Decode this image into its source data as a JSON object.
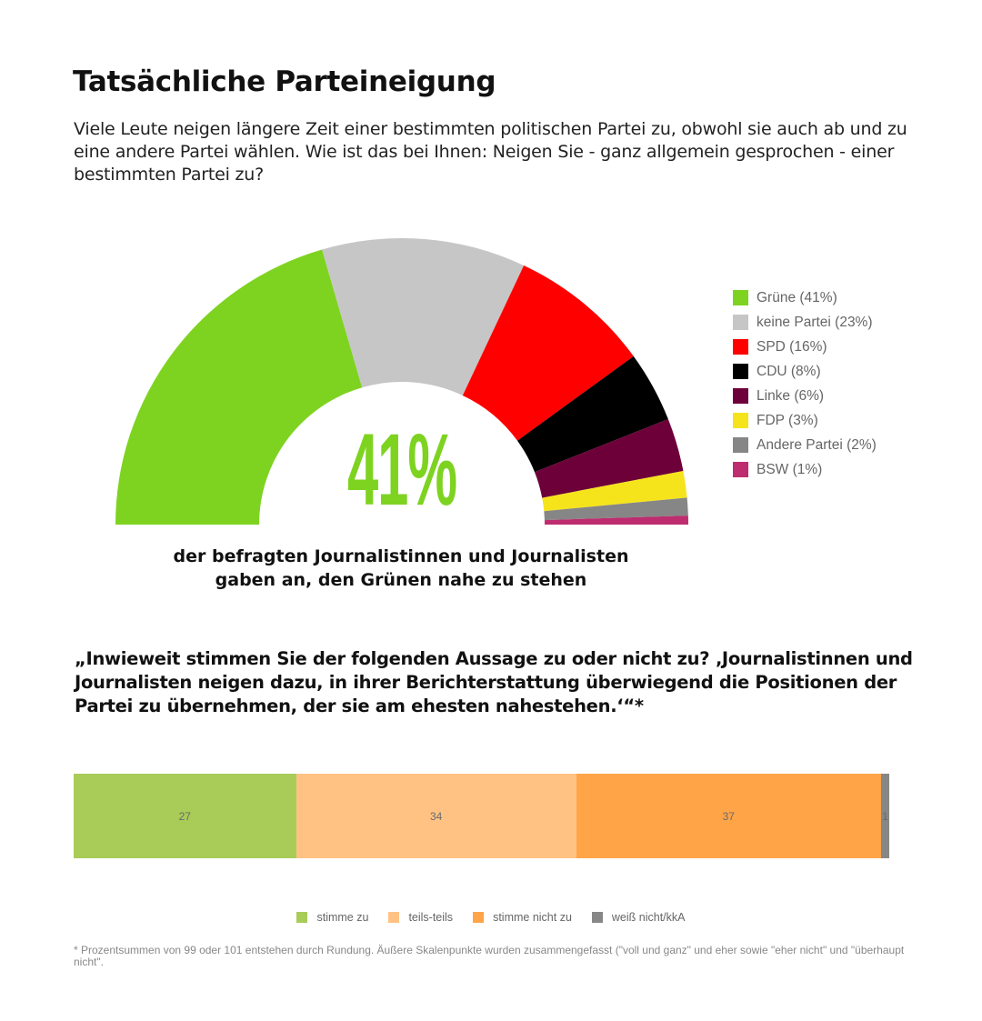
{
  "title": "Tatsächliche Parteineigung",
  "question": "Viele Leute neigen längere Zeit einer bestimmten politischen Partei zu, obwohl sie auch ab und zu eine andere Partei wählen. Wie ist das bei Ihnen: Neigen Sie - ganz allgemein gesprochen - einer bestimmten Partei zu?",
  "highlight": {
    "value": "41%",
    "caption_line1": "der befragten Journalistinnen und Journalisten",
    "caption_line2": "gaben an, den Grünen nahe zu stehen"
  },
  "statement": "„Inwieweit stimmen Sie der folgenden Aussage zu oder nicht zu? ‚Journalistinnen und Journalisten neigen dazu, in ihrer Berichterstattung überwiegend die Positionen der Partei zu übernehmen, der sie am ehesten nahestehen.‘“*",
  "footnote": "* Prozentsummen von 99 oder 101 entstehen durch Rundung. Äußere Skalenpunkte wurden zusammengefasst (\"voll und ganz\" und eher sowie \"eher nicht\" und \"überhaupt nicht\".",
  "chart_data": [
    {
      "type": "pie",
      "variant": "semicircle-donut",
      "categories": [
        "Grüne",
        "keine Partei",
        "SPD",
        "CDU",
        "Linke",
        "FDP",
        "Andere Partei",
        "BSW"
      ],
      "values": [
        41,
        23,
        16,
        8,
        6,
        3,
        2,
        1
      ],
      "colors": [
        "#7ed321",
        "#c6c6c6",
        "#ff0000",
        "#000000",
        "#6d0038",
        "#f5e41c",
        "#868686",
        "#bd2d6f"
      ],
      "legend_labels": [
        "Grüne (41%)",
        "keine Partei (23%)",
        "SPD (16%)",
        "CDU (8%)",
        "Linke (6%)",
        "FDP (3%)",
        "Andere Partei (2%)",
        "BSW (1%)"
      ],
      "legend_position": "right"
    },
    {
      "type": "bar",
      "variant": "stacked-horizontal-100",
      "series": [
        {
          "name": "stimme zu",
          "value": 27,
          "color": "#a8cc57"
        },
        {
          "name": "teils-teils",
          "value": 34,
          "color": "#ffc283"
        },
        {
          "name": "stimme nicht zu",
          "value": 37,
          "color": "#ffa447"
        },
        {
          "name": "weiß nicht/kkA",
          "value": 1,
          "color": "#878787"
        }
      ],
      "legend_position": "bottom"
    }
  ]
}
